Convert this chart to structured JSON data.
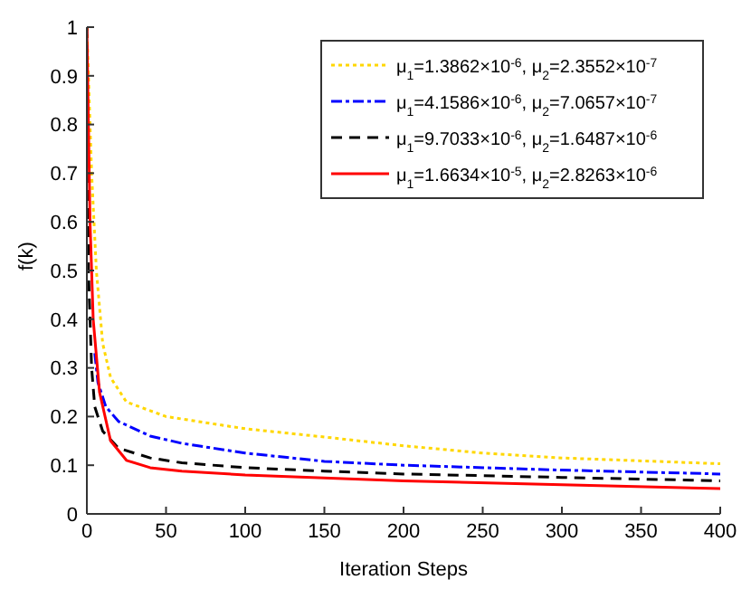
{
  "chart_data": {
    "type": "line",
    "xlabel": "Iteration Steps",
    "ylabel": "f(k)",
    "xlim": [
      0,
      400
    ],
    "xticks": [
      0,
      50,
      100,
      150,
      200,
      250,
      300,
      350,
      400
    ],
    "ylim": [
      0,
      1
    ],
    "yticks": [
      0,
      0.1,
      0.2,
      0.3,
      0.4,
      0.5,
      0.6,
      0.7,
      0.8,
      0.9,
      1
    ],
    "legend": "top right",
    "marker": "none",
    "grid": false,
    "series": [
      {
        "name": "μ$_{1}$=1.3862×10$^{-6}$, μ$_{2}$=2.3552×10$^{-7}$",
        "color": "#ffd700",
        "line_style": "dotted",
        "x": [
          0,
          3,
          6,
          10,
          15,
          25,
          50,
          100,
          150,
          200,
          250,
          300,
          400
        ],
        "values": [
          1,
          0.7,
          0.5,
          0.35,
          0.28,
          0.23,
          0.2,
          0.175,
          0.158,
          0.14,
          0.125,
          0.115,
          0.103
        ]
      },
      {
        "name": "μ$_{1}$=4.1586×10$^{-6}$, μ$_{2}$=7.0657×10$^{-7}$",
        "color": "#0000ff",
        "line_style": "dashdot",
        "x": [
          5,
          7,
          12,
          20,
          40,
          60,
          100,
          150,
          200,
          300,
          400
        ],
        "values": [
          0.33,
          0.27,
          0.22,
          0.19,
          0.16,
          0.145,
          0.125,
          0.108,
          0.1,
          0.09,
          0.082
        ]
      },
      {
        "name": "μ$_{1}$=9.7033×10$^{-6}$, μ$_{2}$=1.6487×10$^{-6}$",
        "color": "#000000",
        "line_style": "dashed",
        "x": [
          0,
          1,
          3,
          5,
          10,
          20,
          40,
          60,
          100,
          150,
          200,
          300,
          400
        ],
        "values": [
          1,
          0.5,
          0.3,
          0.22,
          0.17,
          0.135,
          0.115,
          0.105,
          0.095,
          0.088,
          0.082,
          0.075,
          0.068
        ]
      },
      {
        "name": "μ$_{1}$=1.6634×10$^{-5}$, μ$_{2}$=2.8263×10$^{-6}$",
        "color": "#ff0000",
        "line_style": "solid",
        "x": [
          0,
          2,
          4,
          8,
          15,
          25,
          40,
          60,
          100,
          150,
          200,
          300,
          400
        ],
        "values": [
          1,
          0.6,
          0.4,
          0.25,
          0.15,
          0.11,
          0.095,
          0.088,
          0.08,
          0.074,
          0.068,
          0.06,
          0.052
        ]
      }
    ]
  }
}
